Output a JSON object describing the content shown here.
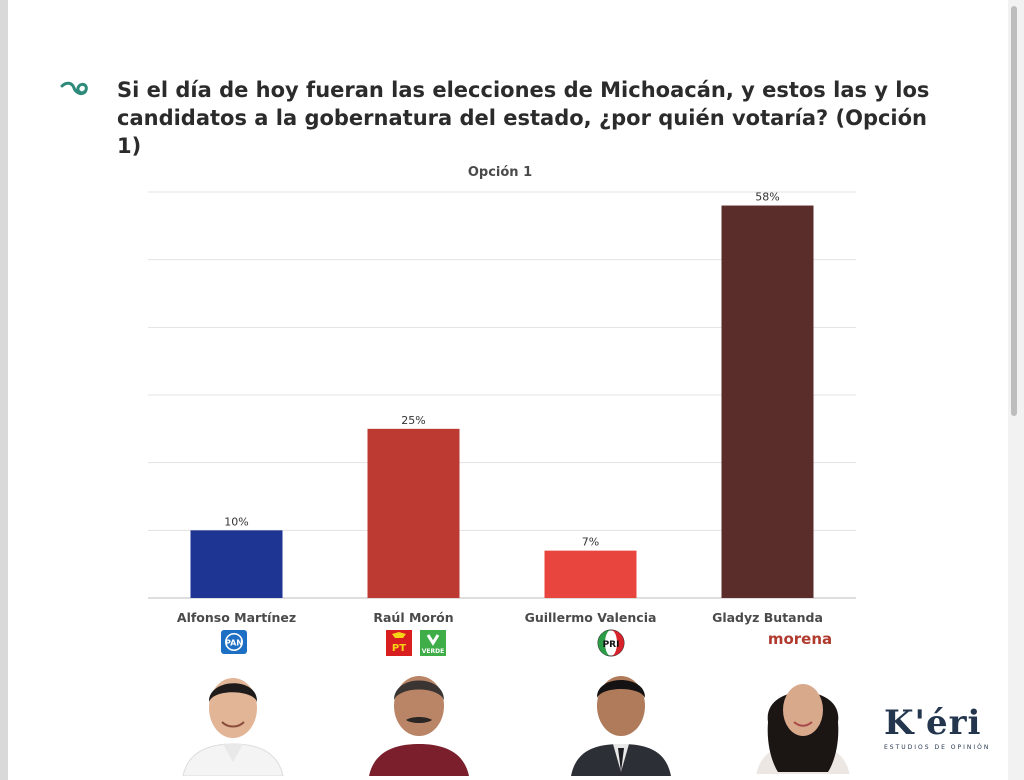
{
  "header": {
    "title": "Si el día de hoy fueran las elecciones de Michoacán, y estos las y los candidatos a la gobernatura del estado, ¿por quién votaría? (Opción 1)"
  },
  "chart_data": {
    "type": "bar",
    "subtitle": "Opción 1",
    "categories": [
      "Alfonso Martínez",
      "Raúl Morón",
      "Guillermo Valencia",
      "Gladyz Butanda"
    ],
    "values": [
      10,
      25,
      7,
      58
    ],
    "value_labels": [
      "10%",
      "25%",
      "7%",
      "58%"
    ],
    "colors": [
      "#1f3594",
      "#bd3a33",
      "#e8453e",
      "#5a2d2b"
    ],
    "ylim": [
      0,
      60
    ],
    "grid": true
  },
  "parties": {
    "pan": "PAN",
    "pt": "PT",
    "verde": "VERDE",
    "pri": "PRI",
    "morena": "morena"
  },
  "brand": {
    "name": "K'éri",
    "tagline": "ESTUDIOS DE OPINIÓN"
  },
  "colors": {
    "accent_teal": "#2e8a7a",
    "morena_red": "#b03a2e",
    "pan_blue": "#1d6fc4",
    "pt_red": "#d81e1e",
    "verde_green": "#3fae49"
  }
}
